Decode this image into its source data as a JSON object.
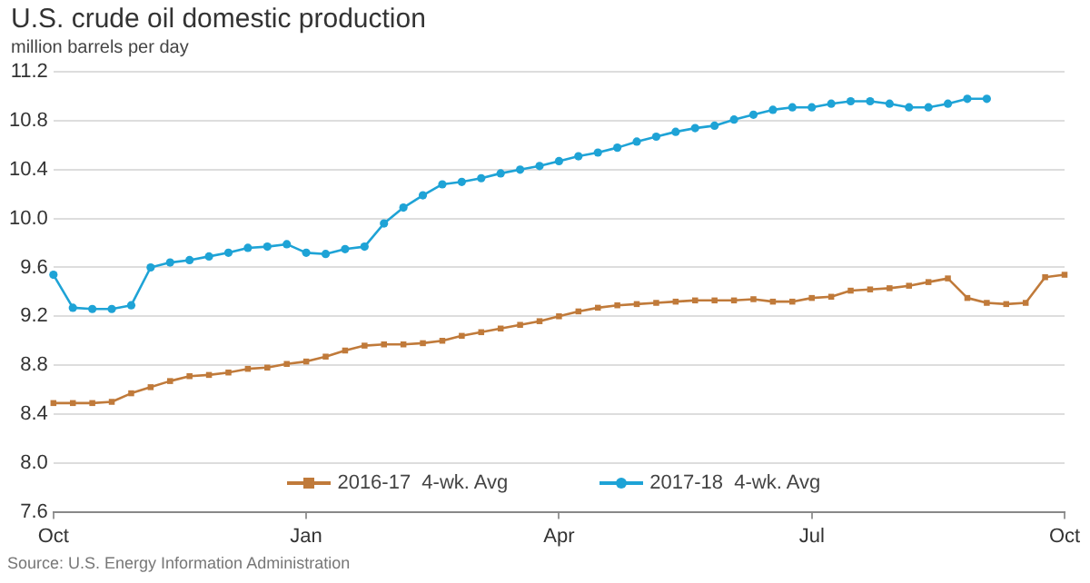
{
  "chart_data": {
    "type": "line",
    "title": "U.S. crude oil domestic production",
    "subtitle": "million barrels per day",
    "categories": [
      "Oct",
      null,
      null,
      null,
      null,
      null,
      null,
      null,
      null,
      null,
      null,
      null,
      null,
      "Jan",
      null,
      null,
      null,
      null,
      null,
      null,
      null,
      null,
      null,
      null,
      null,
      null,
      "Apr",
      null,
      null,
      null,
      null,
      null,
      null,
      null,
      null,
      null,
      null,
      null,
      null,
      "Jul",
      null,
      null,
      null,
      null,
      null,
      null,
      null,
      null,
      null,
      null,
      null,
      null,
      "Oct"
    ],
    "ylim": [
      7.6,
      11.2
    ],
    "yticks": [
      7.6,
      {
        "value": 8,
        "label": "8.0"
      },
      8.4,
      8.8,
      9.2,
      9.6,
      {
        "value": 10,
        "label": "10.0"
      },
      10.4,
      10.8,
      11.2
    ],
    "grid": "y",
    "legend": "bottom",
    "line_style": "solid",
    "series": [
      {
        "name": "2016-17  4-wk. Avg",
        "color": "#c07a3a",
        "marker": "square",
        "values": [
          8.49,
          8.49,
          8.49,
          8.5,
          8.57,
          8.62,
          8.67,
          8.71,
          8.72,
          8.74,
          8.77,
          8.78,
          8.81,
          8.83,
          8.87,
          8.92,
          8.96,
          8.97,
          8.97,
          8.98,
          9.0,
          9.04,
          9.07,
          9.1,
          9.13,
          9.16,
          9.2,
          9.24,
          9.27,
          9.29,
          9.3,
          9.31,
          9.32,
          9.33,
          9.33,
          9.33,
          9.34,
          9.32,
          9.32,
          9.35,
          9.36,
          9.41,
          9.42,
          9.43,
          9.45,
          9.48,
          9.51,
          9.35,
          9.31,
          9.3,
          9.31,
          9.52,
          9.54
        ]
      },
      {
        "name": "2017-18  4-wk. Avg",
        "color": "#1ea3d6",
        "marker": "circle",
        "values": [
          9.54,
          9.27,
          9.26,
          9.26,
          9.29,
          9.6,
          9.64,
          9.66,
          9.69,
          9.72,
          9.76,
          9.77,
          9.79,
          9.72,
          9.71,
          9.75,
          9.77,
          9.96,
          10.09,
          10.19,
          10.28,
          10.3,
          10.33,
          10.37,
          10.4,
          10.43,
          10.47,
          10.51,
          10.54,
          10.58,
          10.63,
          10.67,
          10.71,
          10.74,
          10.76,
          10.81,
          10.85,
          10.89,
          10.91,
          10.91,
          10.94,
          10.96,
          10.96,
          10.94,
          10.91,
          10.91,
          10.94,
          10.98,
          10.98,
          null,
          null,
          null,
          null
        ]
      }
    ],
    "annotations": [
      "Source: U.S. Energy Information Administration"
    ]
  }
}
